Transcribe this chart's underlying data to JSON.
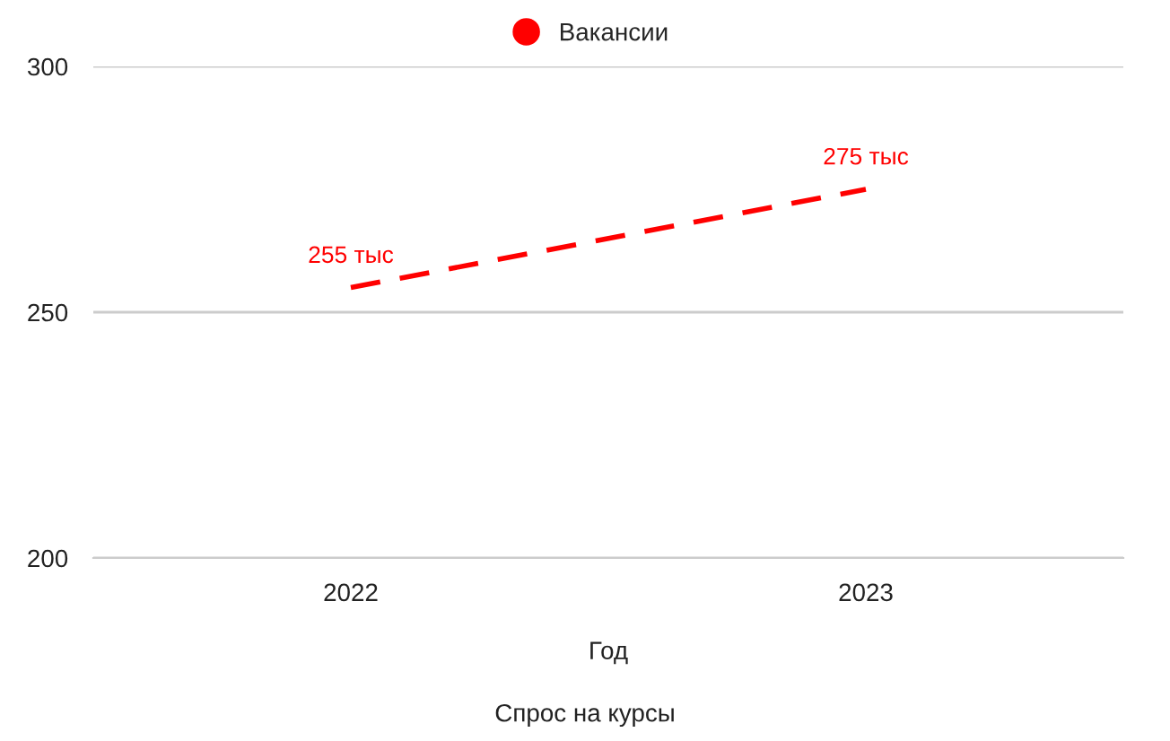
{
  "chart_data": {
    "type": "line",
    "title": "Спрос на курсы",
    "xlabel": "Год",
    "categories": [
      "2022",
      "2023"
    ],
    "series": [
      {
        "name": "Вакансии",
        "color": "#ff0000",
        "values": [
          255,
          275
        ],
        "value_labels": [
          "255 тыс",
          "275 тыс"
        ]
      }
    ],
    "ylim": [
      200,
      300
    ],
    "yticks": [
      200,
      250,
      300
    ],
    "grid": "y",
    "legend": "top",
    "line_style": "dashed",
    "marker": "none"
  }
}
